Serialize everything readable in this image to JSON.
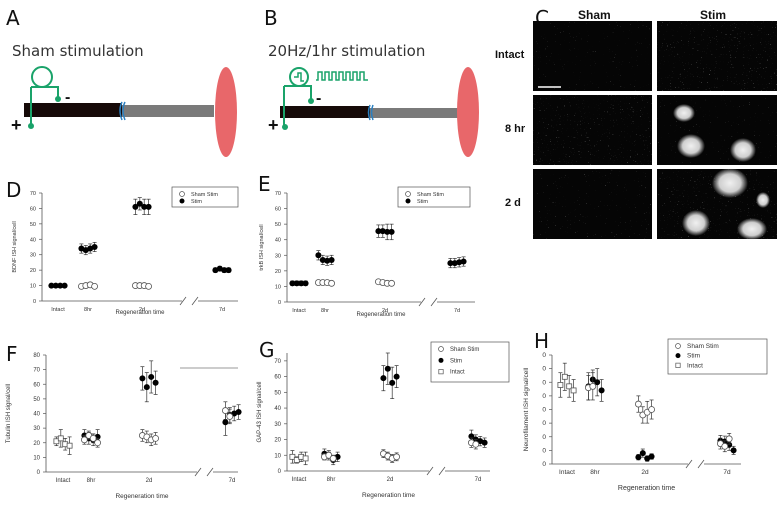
{
  "panels": {
    "A": {
      "letter": "A",
      "title": "Sham stimulation",
      "plus": "+",
      "minus": "-"
    },
    "B": {
      "letter": "B",
      "title": "20Hz/1hr stimulation",
      "plus": "+",
      "minus": "-"
    },
    "C": {
      "letter": "C",
      "columns": [
        "Sham",
        "Stim"
      ],
      "rows": [
        "Intact",
        "8 hr",
        "2 d"
      ]
    },
    "D": {
      "letter": "D"
    },
    "E": {
      "letter": "E"
    },
    "F": {
      "letter": "F"
    },
    "G": {
      "letter": "G"
    },
    "H": {
      "letter": "H"
    }
  },
  "colors": {
    "nerve_proximal": "#160a08",
    "nerve_distal": "#7a7a7a",
    "target_muscle": "#e8676a",
    "electrode": "#1aa36a",
    "suture": "#2a7fc0",
    "micrograph_bg": "#050505"
  },
  "chart_data": [
    {
      "panel": "D",
      "type": "scatter",
      "title": "",
      "xlabel": "Regeneration time",
      "ylabel": "BDNF ISH signal/cell",
      "categories": [
        "Intact",
        "8hr",
        "2d",
        "7d"
      ],
      "ylim": [
        0,
        70
      ],
      "yticks": [
        0,
        10,
        20,
        30,
        40,
        50,
        60,
        70
      ],
      "axis_break": "between 2d and 7d",
      "legend": [
        "Sham Stim",
        "Stim"
      ],
      "legend_position": "upper right",
      "series": [
        {
          "name": "Stim",
          "marker": "filled-circle",
          "values": {
            "Intact": [
              10,
              10,
              10,
              10
            ],
            "8hr": [
              34,
              33,
              34,
              35
            ],
            "2d": [
              61,
              63,
              61,
              61
            ],
            "7d": [
              20,
              21,
              20,
              20
            ]
          },
          "errors": {
            "Intact": [
              1,
              1,
              1,
              1
            ],
            "8hr": [
              3,
              3,
              3,
              3
            ],
            "2d": [
              5,
              4,
              5,
              5
            ],
            "7d": [
              1.5,
              1.5,
              1.5,
              1.5
            ]
          }
        },
        {
          "name": "Sham Stim",
          "marker": "open-circle",
          "values": {
            "8hr": [
              9.5,
              10,
              10.5,
              9.5
            ],
            "2d": [
              10,
              10,
              10,
              9.5
            ]
          },
          "errors": {
            "8hr": [
              1.5,
              1.5,
              1.5,
              1.5
            ],
            "2d": [
              1,
              1,
              1,
              1
            ]
          }
        }
      ]
    },
    {
      "panel": "E",
      "type": "scatter",
      "title": "",
      "xlabel": "Regeneration time",
      "ylabel": "trkB ISH signal/cell",
      "categories": [
        "Intact",
        "8hr",
        "2d",
        "7d"
      ],
      "ylim": [
        0,
        70
      ],
      "yticks": [
        0,
        10,
        20,
        30,
        40,
        50,
        60,
        70
      ],
      "axis_break": "between 2d and 7d",
      "legend": [
        "Sham Stim",
        "Stim"
      ],
      "legend_position": "upper right",
      "series": [
        {
          "name": "Stim",
          "marker": "filled-circle",
          "values": {
            "Intact": [
              12,
              12,
              12,
              12
            ],
            "8hr": [
              30,
              27,
              26.5,
              27
            ],
            "2d": [
              45.5,
              45.5,
              45,
              45
            ],
            "7d": [
              25,
              25,
              25.5,
              26
            ]
          },
          "errors": {
            "Intact": [
              1.5,
              1.5,
              1.5,
              1.5
            ],
            "8hr": [
              3,
              3,
              3,
              3
            ],
            "2d": [
              4,
              4,
              5,
              5
            ],
            "7d": [
              3,
              3,
              3,
              3
            ]
          }
        },
        {
          "name": "Sham Stim",
          "marker": "open-circle",
          "values": {
            "8hr": [
              12.5,
              12.5,
              12.5,
              12
            ],
            "2d": [
              13,
              12.5,
              12,
              12
            ]
          },
          "errors": {
            "8hr": [
              1,
              1,
              1,
              1
            ],
            "2d": [
              1,
              1,
              1,
              1
            ]
          }
        }
      ]
    },
    {
      "panel": "F",
      "type": "scatter",
      "title": "",
      "xlabel": "Regeneration time",
      "ylabel": "Tubulin ISH signal/cell",
      "categories": [
        "Intact",
        "8hr",
        "2d",
        "7d"
      ],
      "ylim": [
        0,
        80
      ],
      "yticks": [
        0,
        10,
        20,
        30,
        40,
        50,
        60,
        70,
        80
      ],
      "axis_break": "between 2d and 7d",
      "legend": [],
      "series": [
        {
          "name": "Stim",
          "marker": "filled-circle",
          "values": {
            "8hr": [
              25,
              23,
              22,
              24
            ],
            "2d": [
              64,
              58,
              65,
              61
            ],
            "7d": [
              34,
              39,
              40,
              41
            ]
          },
          "errors": {
            "8hr": [
              4,
              4,
              4,
              5
            ],
            "2d": [
              8,
              10,
              11,
              8
            ],
            "7d": [
              9,
              5,
              5,
              5
            ]
          }
        },
        {
          "name": "Sham Stim",
          "marker": "open-circle",
          "values": {
            "8hr": [
              22,
              25,
              23,
              20
            ],
            "2d": [
              25,
              24,
              22,
              23
            ],
            "7d": [
              42,
              38
            ]
          },
          "errors": {
            "8hr": [
              3,
              3,
              3,
              3
            ],
            "2d": [
              4,
              4,
              4,
              4
            ],
            "7d": [
              6,
              5
            ]
          }
        },
        {
          "name": "Intact",
          "marker": "open-square",
          "values": {
            "Intact": [
              21,
              23,
              19,
              18
            ]
          },
          "errors": {
            "Intact": [
              3,
              6,
              4,
              6
            ]
          }
        }
      ]
    },
    {
      "panel": "G",
      "type": "scatter",
      "title": "",
      "xlabel": "Regeneration time",
      "ylabel": "GAP-43 ISH signal/cell",
      "categories": [
        "Intact",
        "8hr",
        "2d",
        "7d"
      ],
      "ylim": [
        0,
        75
      ],
      "yticks": [
        0,
        10,
        20,
        30,
        40,
        50,
        60,
        70
      ],
      "axis_break": "between 2d and 7d",
      "legend": [
        "Sham Stim",
        "Stim",
        "Intact"
      ],
      "legend_position": "upper right",
      "series": [
        {
          "name": "Stim",
          "marker": "filled-circle",
          "values": {
            "8hr": [
              11,
              10,
              7,
              9
            ],
            "2d": [
              59,
              65,
              56,
              60
            ],
            "7d": [
              22,
              20,
              19,
              18
            ]
          },
          "errors": {
            "8hr": [
              3,
              3,
              3,
              3
            ],
            "2d": [
              8,
              10,
              10,
              7
            ],
            "7d": [
              4,
              3,
              3,
              3
            ]
          }
        },
        {
          "name": "Sham Stim",
          "marker": "open-circle",
          "values": {
            "8hr": [
              9,
              10,
              8
            ],
            "2d": [
              11,
              9.5,
              8,
              9
            ],
            "7d": [
              18,
              17
            ]
          },
          "errors": {
            "8hr": [
              2,
              2,
              2
            ],
            "2d": [
              2.5,
              2.5,
              2.5,
              2.5
            ],
            "7d": [
              3,
              3
            ]
          }
        },
        {
          "name": "Intact",
          "marker": "open-square",
          "values": {
            "Intact": [
              9,
              7,
              9,
              8
            ]
          },
          "errors": {
            "Intact": [
              4,
              2,
              3,
              4
            ]
          }
        }
      ]
    },
    {
      "panel": "H",
      "type": "scatter",
      "title": "",
      "xlabel": "Regeneration time",
      "ylabel": "Neurofilament ISH signal/cell",
      "categories": [
        "Intact",
        "8hr",
        "2d",
        "7d"
      ],
      "ylim": [
        0,
        8
      ],
      "yticks": [
        "0",
        "0",
        "0",
        "0",
        "0",
        "0",
        "0",
        "0",
        "0"
      ],
      "ytick_note": "tick labels truncated, all rendered as '0'",
      "axis_break": "between 2d and 7d",
      "legend": [
        "Sham Stim",
        "Stim",
        "Intact"
      ],
      "legend_position": "upper right",
      "series": [
        {
          "name": "Stim",
          "marker": "filled-circle",
          "values": {
            "8hr": [
              5.7,
              6.2,
              6.0,
              5.4
            ],
            "2d": [
              0.5,
              0.8,
              0.4,
              0.55
            ],
            "7d": [
              1.7,
              1.65,
              1.4,
              1.0
            ]
          },
          "errors": {
            "8hr": [
              1,
              0.7,
              1,
              0.8
            ],
            "2d": [
              0.2,
              0.3,
              0.2,
              0.2
            ],
            "7d": [
              0.4,
              0.4,
              0.4,
              0.3
            ]
          }
        },
        {
          "name": "Sham Stim",
          "marker": "open-circle",
          "values": {
            "8hr": [
              5.6,
              5.7
            ],
            "2d": [
              4.4,
              3.6,
              3.8,
              4.0
            ],
            "7d": [
              1.5,
              1.3,
              1.85
            ]
          },
          "errors": {
            "8hr": [
              0.9,
              1.0
            ],
            "2d": [
              0.6,
              0.6,
              0.8,
              0.7
            ],
            "7d": [
              0.4,
              0.4,
              0.4
            ]
          }
        },
        {
          "name": "Intact",
          "marker": "open-square",
          "values": {
            "Intact": [
              5.8,
              6.4,
              5.7,
              5.4
            ]
          },
          "errors": {
            "Intact": [
              0.9,
              1.0,
              0.8,
              0.8
            ]
          }
        }
      ]
    }
  ]
}
